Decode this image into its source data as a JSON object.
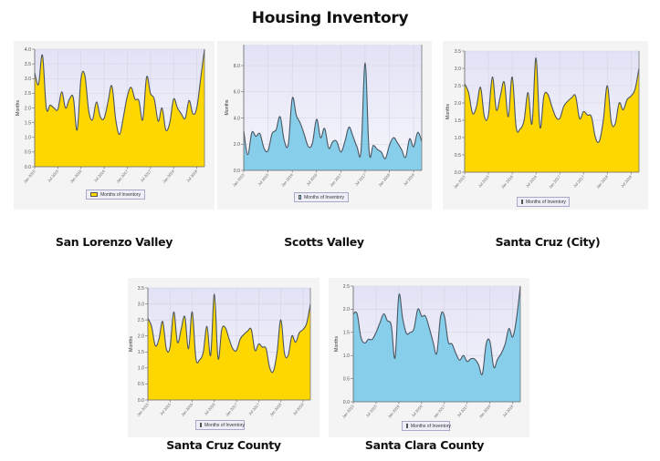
{
  "page": {
    "title": "Housing Inventory"
  },
  "colors": {
    "yellow_fill": "#ffd700",
    "blue_fill": "#87ceeb",
    "line": "#4a5560",
    "plot_bg_top": "#e2e2f6",
    "plot_bg_bottom": "#f6f6fc",
    "grid": "#d4d4e4"
  },
  "charts": [
    {
      "id": "slv",
      "caption": "San Lorenzo Valley",
      "legend": "Months of Inventory",
      "ylabel": "Months",
      "color": "yellow"
    },
    {
      "id": "sv",
      "caption": "Scotts Valley",
      "legend": "Months of Inventory",
      "ylabel": "Months",
      "color": "blue"
    },
    {
      "id": "scc",
      "caption": "Santa Cruz (City)",
      "legend": "Months of Inventory",
      "ylabel": "Months",
      "color": "yellow"
    },
    {
      "id": "scco",
      "caption": "Santa Cruz County",
      "legend": "Months of Inventory",
      "ylabel": "Months",
      "color": "yellow"
    },
    {
      "id": "sclc",
      "caption": "Santa Clara County",
      "legend": "Months of Inventory",
      "ylabel": "Months",
      "color": "blue"
    }
  ],
  "chart_data": [
    {
      "type": "area",
      "title": "San Lorenzo Valley",
      "xlabel": "",
      "ylabel": "Months",
      "legend": [
        "Months of Inventory"
      ],
      "ylim": [
        0,
        4.0
      ],
      "yticks": [
        0.0,
        0.5,
        1.0,
        1.5,
        2.0,
        2.5,
        3.0,
        3.5,
        4.0
      ],
      "xticks": [
        "Jan 2015",
        "Jul 2015",
        "Jan 2016",
        "Jul 2016",
        "Jan 2017",
        "Jul 2017",
        "Jan 2018",
        "Jul 2018"
      ],
      "x": [
        "Jan 2015",
        "Feb 2015",
        "Mar 2015",
        "Apr 2015",
        "May 2015",
        "Jun 2015",
        "Jul 2015",
        "Aug 2015",
        "Sep 2015",
        "Oct 2015",
        "Nov 2015",
        "Dec 2015",
        "Jan 2016",
        "Feb 2016",
        "Mar 2016",
        "Apr 2016",
        "May 2016",
        "Jun 2016",
        "Jul 2016",
        "Aug 2016",
        "Sep 2016",
        "Oct 2016",
        "Nov 2016",
        "Dec 2016",
        "Jan 2017",
        "Feb 2017",
        "Mar 2017",
        "Apr 2017",
        "May 2017",
        "Jun 2017",
        "Jul 2017",
        "Aug 2017",
        "Sep 2017",
        "Oct 2017",
        "Nov 2017",
        "Dec 2017",
        "Jan 2018",
        "Feb 2018",
        "Mar 2018",
        "Apr 2018",
        "May 2018",
        "Jun 2018",
        "Jul 2018",
        "Aug 2018",
        "Sep 2018"
      ],
      "values": [
        3.2,
        2.8,
        3.8,
        2.0,
        2.1,
        2.0,
        1.95,
        2.55,
        2.0,
        2.3,
        2.35,
        1.25,
        3.0,
        3.1,
        1.9,
        1.6,
        2.2,
        1.7,
        1.65,
        2.2,
        2.75,
        1.6,
        1.1,
        1.7,
        2.4,
        2.7,
        2.3,
        2.25,
        1.6,
        3.05,
        2.5,
        2.3,
        1.55,
        2.0,
        1.25,
        1.5,
        2.3,
        2.0,
        1.8,
        1.65,
        2.25,
        1.8,
        2.0,
        3.0,
        4.0
      ]
    },
    {
      "type": "area",
      "title": "Scotts Valley",
      "xlabel": "",
      "ylabel": "Months",
      "legend": [
        "Months of Inventory"
      ],
      "ylim": [
        0,
        9.6
      ],
      "yticks": [
        0.0,
        2.0,
        4.0,
        6.0,
        8.0
      ],
      "xticks": [
        "Jan 2015",
        "Jul 2015",
        "Jan 2016",
        "Jul 2016",
        "Jan 2017",
        "Jul 2017",
        "Jan 2018",
        "Jul 2018"
      ],
      "x": [
        "Jan 2015",
        "Feb 2015",
        "Mar 2015",
        "Apr 2015",
        "May 2015",
        "Jun 2015",
        "Jul 2015",
        "Aug 2015",
        "Sep 2015",
        "Oct 2015",
        "Nov 2015",
        "Dec 2015",
        "Jan 2016",
        "Feb 2016",
        "Mar 2016",
        "Apr 2016",
        "May 2016",
        "Jun 2016",
        "Jul 2016",
        "Aug 2016",
        "Sep 2016",
        "Oct 2016",
        "Nov 2016",
        "Dec 2016",
        "Jan 2017",
        "Feb 2017",
        "Mar 2017",
        "Apr 2017",
        "May 2017",
        "Jun 2017",
        "Jul 2017",
        "Aug 2017",
        "Sep 2017",
        "Oct 2017",
        "Nov 2017",
        "Dec 2017",
        "Jan 2018",
        "Feb 2018",
        "Mar 2018",
        "Apr 2018",
        "May 2018",
        "Jun 2018",
        "Jul 2018",
        "Aug 2018",
        "Sep 2018"
      ],
      "values": [
        3.0,
        1.2,
        2.9,
        2.6,
        2.8,
        1.7,
        1.5,
        2.8,
        3.1,
        4.1,
        2.3,
        2.0,
        5.5,
        4.2,
        3.6,
        2.7,
        1.8,
        2.1,
        3.9,
        2.5,
        3.2,
        1.7,
        2.2,
        2.2,
        1.4,
        2.2,
        3.3,
        2.6,
        1.8,
        1.5,
        8.2,
        1.4,
        1.9,
        1.6,
        1.4,
        0.9,
        1.9,
        2.5,
        2.1,
        1.6,
        1.0,
        2.4,
        1.8,
        2.9,
        2.2
      ]
    },
    {
      "type": "area",
      "title": "Santa Cruz (City)",
      "xlabel": "",
      "ylabel": "Months",
      "legend": [
        "Months of Inventory"
      ],
      "ylim": [
        0,
        3.5
      ],
      "yticks": [
        0.0,
        0.5,
        1.0,
        1.5,
        2.0,
        2.5,
        3.0,
        3.5
      ],
      "xticks": [
        "Jan 2015",
        "Jul 2015",
        "Jan 2016",
        "Jul 2016",
        "Jan 2017",
        "Jul 2017",
        "Jan 2018",
        "Jul 2018"
      ],
      "x": [
        "Jan 2015",
        "Feb 2015",
        "Mar 2015",
        "Apr 2015",
        "May 2015",
        "Jun 2015",
        "Jul 2015",
        "Aug 2015",
        "Sep 2015",
        "Oct 2015",
        "Nov 2015",
        "Dec 2015",
        "Jan 2016",
        "Feb 2016",
        "Mar 2016",
        "Apr 2016",
        "May 2016",
        "Jun 2016",
        "Jul 2016",
        "Aug 2016",
        "Sep 2016",
        "Oct 2016",
        "Nov 2016",
        "Dec 2016",
        "Jan 2017",
        "Feb 2017",
        "Mar 2017",
        "Apr 2017",
        "May 2017",
        "Jun 2017",
        "Jul 2017",
        "Aug 2017",
        "Sep 2017",
        "Oct 2017",
        "Nov 2017",
        "Dec 2017",
        "Jan 2018",
        "Feb 2018",
        "Mar 2018",
        "Apr 2018",
        "May 2018",
        "Jun 2018",
        "Jul 2018",
        "Aug 2018",
        "Sep 2018"
      ],
      "values": [
        2.55,
        2.3,
        1.7,
        1.9,
        2.45,
        1.6,
        1.65,
        2.75,
        1.8,
        2.2,
        2.6,
        1.6,
        2.75,
        1.3,
        1.25,
        1.5,
        2.3,
        1.4,
        3.3,
        1.3,
        2.2,
        2.25,
        1.9,
        1.6,
        1.55,
        1.9,
        2.05,
        2.15,
        2.2,
        1.55,
        1.75,
        1.65,
        1.6,
        1.0,
        0.9,
        1.5,
        2.5,
        1.45,
        1.4,
        2.0,
        1.8,
        2.1,
        2.2,
        2.4,
        3.0
      ]
    },
    {
      "type": "area",
      "title": "Santa Cruz County",
      "xlabel": "",
      "ylabel": "Months",
      "legend": [
        "Months of Inventory"
      ],
      "ylim": [
        0,
        3.5
      ],
      "yticks": [
        0.0,
        0.5,
        1.0,
        1.5,
        2.0,
        2.5,
        3.0,
        3.5
      ],
      "xticks": [
        "Jan 2015",
        "Jul 2015",
        "Jan 2016",
        "Jul 2016",
        "Jan 2017",
        "Jul 2017",
        "Jan 2018",
        "Jul 2018"
      ],
      "x": [
        "Jan 2015",
        "Feb 2015",
        "Mar 2015",
        "Apr 2015",
        "May 2015",
        "Jun 2015",
        "Jul 2015",
        "Aug 2015",
        "Sep 2015",
        "Oct 2015",
        "Nov 2015",
        "Dec 2015",
        "Jan 2016",
        "Feb 2016",
        "Mar 2016",
        "Apr 2016",
        "May 2016",
        "Jun 2016",
        "Jul 2016",
        "Aug 2016",
        "Sep 2016",
        "Oct 2016",
        "Nov 2016",
        "Dec 2016",
        "Jan 2017",
        "Feb 2017",
        "Mar 2017",
        "Apr 2017",
        "May 2017",
        "Jun 2017",
        "Jul 2017",
        "Aug 2017",
        "Sep 2017",
        "Oct 2017",
        "Nov 2017",
        "Dec 2017",
        "Jan 2018",
        "Feb 2018",
        "Mar 2018",
        "Apr 2018",
        "May 2018",
        "Jun 2018",
        "Jul 2018",
        "Aug 2018",
        "Sep 2018"
      ],
      "values": [
        2.55,
        2.3,
        1.7,
        1.9,
        2.45,
        1.6,
        1.65,
        2.75,
        1.8,
        2.2,
        2.6,
        1.6,
        2.75,
        1.3,
        1.25,
        1.5,
        2.3,
        1.4,
        3.3,
        1.3,
        2.2,
        2.25,
        1.9,
        1.6,
        1.55,
        1.9,
        2.05,
        2.15,
        2.2,
        1.55,
        1.75,
        1.65,
        1.6,
        1.0,
        0.9,
        1.5,
        2.5,
        1.45,
        1.4,
        2.0,
        1.8,
        2.1,
        2.2,
        2.4,
        3.0
      ]
    },
    {
      "type": "area",
      "title": "Santa Clara County",
      "xlabel": "",
      "ylabel": "Months",
      "legend": [
        "Months of Inventory"
      ],
      "ylim": [
        0,
        2.5
      ],
      "yticks": [
        0.0,
        0.5,
        1.0,
        1.5,
        2.0,
        2.5
      ],
      "xticks": [
        "Jan 2015",
        "Jul 2015",
        "Jan 2016",
        "Jul 2016",
        "Jan 2017",
        "Jul 2017",
        "Jan 2018",
        "Jul 2018"
      ],
      "x": [
        "Jan 2015",
        "Feb 2015",
        "Mar 2015",
        "Apr 2015",
        "May 2015",
        "Jun 2015",
        "Jul 2015",
        "Aug 2015",
        "Sep 2015",
        "Oct 2015",
        "Nov 2015",
        "Dec 2015",
        "Jan 2016",
        "Feb 2016",
        "Mar 2016",
        "Apr 2016",
        "May 2016",
        "Jun 2016",
        "Jul 2016",
        "Aug 2016",
        "Sep 2016",
        "Oct 2016",
        "Nov 2016",
        "Dec 2016",
        "Jan 2017",
        "Feb 2017",
        "Mar 2017",
        "Apr 2017",
        "May 2017",
        "Jun 2017",
        "Jul 2017",
        "Aug 2017",
        "Sep 2017",
        "Oct 2017",
        "Nov 2017",
        "Dec 2017",
        "Jan 2018",
        "Feb 2018",
        "Mar 2018",
        "Apr 2018",
        "May 2018",
        "Jun 2018",
        "Jul 2018",
        "Aug 2018",
        "Sep 2018"
      ],
      "values": [
        1.9,
        1.9,
        1.4,
        1.27,
        1.35,
        1.35,
        1.5,
        1.7,
        1.9,
        1.75,
        1.65,
        0.95,
        2.3,
        1.8,
        1.48,
        1.5,
        1.58,
        2.0,
        1.85,
        1.85,
        1.6,
        1.3,
        1.05,
        1.85,
        1.85,
        1.3,
        1.25,
        1.05,
        0.9,
        1.0,
        0.87,
        0.93,
        0.92,
        0.8,
        0.6,
        1.25,
        1.3,
        0.75,
        0.92,
        1.05,
        1.25,
        1.58,
        1.4,
        1.8,
        2.5
      ]
    }
  ]
}
